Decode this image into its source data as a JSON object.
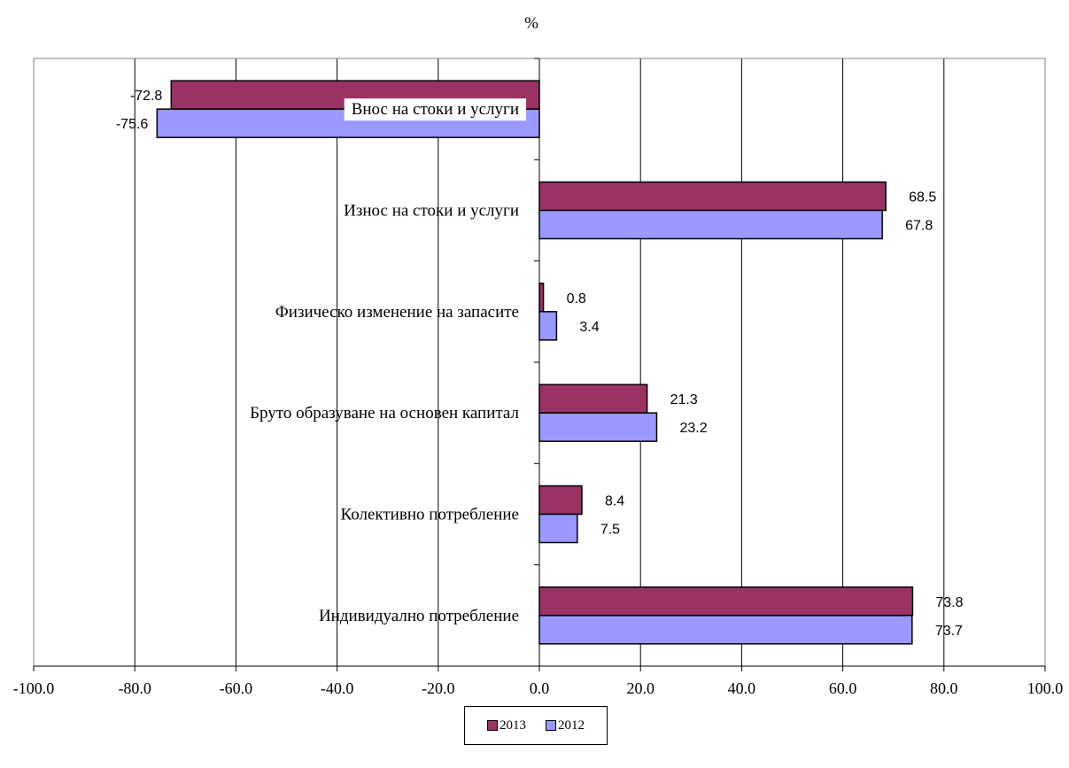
{
  "chart_data": {
    "type": "bar",
    "orientation": "horizontal",
    "unit_label": "%",
    "categories": [
      "Внос на стоки и услуги",
      "Износ на стоки и услуги",
      "Физическо изменение на запасите",
      "Бруто образуване на основен капитал",
      "Колективно потребление",
      "Индивидуално потребление"
    ],
    "series": [
      {
        "name": "2013",
        "color": "#993366",
        "values": [
          -72.8,
          68.5,
          0.8,
          21.3,
          8.4,
          73.8
        ],
        "labels": [
          "-72.8",
          "68.5",
          "0.8",
          "21.3",
          "8.4",
          "73.8"
        ]
      },
      {
        "name": "2012",
        "color": "#9999ff",
        "values": [
          -75.6,
          67.8,
          3.4,
          23.2,
          7.5,
          73.7
        ],
        "labels": [
          "-75.6",
          "67.8",
          "3.4",
          "23.2",
          "7.5",
          "73.7"
        ]
      }
    ],
    "xlim": [
      -100,
      100
    ],
    "x_ticks": [
      "-100.0",
      "-80.0",
      "-60.0",
      "-40.0",
      "-20.0",
      "0.0",
      "20.0",
      "40.0",
      "60.0",
      "80.0",
      "100.0"
    ],
    "grid": "vertical",
    "legend_position": "bottom-center"
  }
}
